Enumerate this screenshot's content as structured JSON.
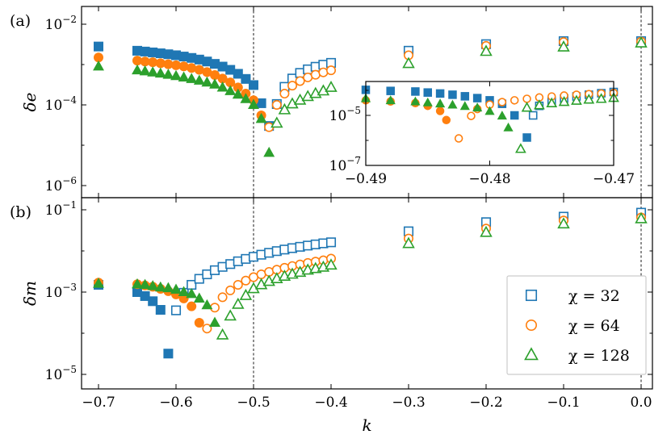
{
  "colors": {
    "chi32": "#1f77b4",
    "chi64": "#ff7f0e",
    "chi128": "#2ca02c"
  },
  "chart_data": [
    {
      "type": "scatter",
      "panel_label": "(a)",
      "ylabel": "δe",
      "xlabel": "",
      "yscale": "log",
      "xlim": [
        -0.72,
        0.01
      ],
      "ylim": [
        5e-07,
        0.012
      ],
      "x_ticks": [
        -0.7,
        -0.6,
        -0.5,
        -0.4,
        -0.3,
        -0.2,
        -0.1,
        0.0
      ],
      "y_ticks": [
        {
          "value": 1e-06,
          "label": "10",
          "exp": "−6"
        },
        {
          "value": 0.0001,
          "label": "10",
          "exp": "−4"
        },
        {
          "value": 0.01,
          "label": "10",
          "exp": "−2"
        }
      ],
      "vlines": [
        -0.5,
        0.0
      ],
      "series": [
        {
          "key": "chi32",
          "marker": "square",
          "filled": {
            "x": [
              -0.7,
              -0.65,
              -0.64,
              -0.63,
              -0.62,
              -0.61,
              -0.6,
              -0.59,
              -0.58,
              -0.57,
              -0.56,
              -0.55,
              -0.54,
              -0.53,
              -0.52,
              -0.51,
              -0.5,
              -0.49,
              -0.48
            ],
            "y": [
              0.0028,
              0.0022,
              0.0021,
              0.002,
              0.0019,
              0.0018,
              0.0017,
              0.00158,
              0.00146,
              0.00133,
              0.00119,
              0.00104,
              0.00089,
              0.00074,
              0.00059,
              0.00044,
              0.00031,
              0.00011,
              3e-05
            ]
          },
          "open": {
            "x": [
              -0.47,
              -0.46,
              -0.45,
              -0.44,
              -0.43,
              -0.42,
              -0.41,
              -0.4,
              -0.3,
              -0.2,
              -0.1,
              0.0
            ],
            "y": [
              0.000105,
              0.00028,
              0.00045,
              0.00062,
              0.00076,
              0.00088,
              0.00099,
              0.0011,
              0.0022,
              0.0032,
              0.0038,
              0.0038
            ]
          }
        },
        {
          "key": "chi64",
          "marker": "circle",
          "filled": {
            "x": [
              -0.7,
              -0.65,
              -0.64,
              -0.63,
              -0.62,
              -0.61,
              -0.6,
              -0.59,
              -0.58,
              -0.57,
              -0.56,
              -0.55,
              -0.54,
              -0.53,
              -0.52,
              -0.51,
              -0.5,
              -0.49
            ],
            "y": [
              0.0015,
              0.00125,
              0.00119,
              0.00114,
              0.00108,
              0.00102,
              0.00096,
              0.0009,
              0.00082,
              0.00074,
              0.00065,
              0.00055,
              0.00045,
              0.00036,
              0.00027,
              0.00019,
              0.00013,
              5.5e-05
            ]
          },
          "open": {
            "x": [
              -0.48,
              -0.47,
              -0.46,
              -0.45,
              -0.44,
              -0.43,
              -0.42,
              -0.41,
              -0.4,
              -0.3,
              -0.2,
              -0.1,
              0.0
            ],
            "y": [
              2.8e-05,
              0.0001,
              0.00019,
              0.0003,
              0.00039,
              0.00048,
              0.00056,
              0.00064,
              0.00072,
              0.0017,
              0.0029,
              0.0036,
              0.0037
            ]
          }
        },
        {
          "key": "chi128",
          "marker": "triangle",
          "filled": {
            "x": [
              -0.7,
              -0.65,
              -0.64,
              -0.63,
              -0.62,
              -0.61,
              -0.6,
              -0.59,
              -0.58,
              -0.57,
              -0.56,
              -0.55,
              -0.54,
              -0.53,
              -0.52,
              -0.51,
              -0.5,
              -0.49,
              -0.48
            ],
            "y": [
              0.0009,
              0.00072,
              0.00068,
              0.00064,
              0.0006,
              0.00056,
              0.00052,
              0.00048,
              0.00044,
              0.0004,
              0.00036,
              0.00032,
              0.00027,
              0.00022,
              0.00018,
              0.00014,
              0.0001,
              4.5e-05,
              6.5e-06
            ]
          },
          "open": {
            "x": [
              -0.47,
              -0.46,
              -0.45,
              -0.44,
              -0.43,
              -0.42,
              -0.41,
              -0.4,
              -0.3,
              -0.2,
              -0.1,
              0.0
            ],
            "y": [
              3.5e-05,
              7.5e-05,
              0.000105,
              0.00013,
              0.00016,
              0.00019,
              0.00022,
              0.00027,
              0.00105,
              0.0021,
              0.0027,
              0.0034
            ]
          }
        }
      ]
    },
    {
      "type": "scatter",
      "panel_label": "",
      "ylabel": "",
      "xlabel": "",
      "yscale": "log",
      "role": "inset",
      "xlim": [
        -0.49,
        -0.47
      ],
      "ylim": [
        1e-07,
        0.0002
      ],
      "x_ticks": [
        -0.49,
        -0.48,
        -0.47
      ],
      "x_tick_labels": [
        "−0.49",
        "−0.48",
        "−0.47"
      ],
      "y_ticks": [
        {
          "value": 1e-07,
          "label": "10",
          "exp": "−7"
        },
        {
          "value": 1e-05,
          "label": "10",
          "exp": "−5"
        }
      ],
      "series": [
        {
          "key": "chi32",
          "marker": "square",
          "filled": {
            "x": [
              -0.49,
              -0.488,
              -0.486,
              -0.485,
              -0.484,
              -0.483,
              -0.482,
              -0.481,
              -0.48,
              -0.479,
              -0.478,
              -0.477
            ],
            "y": [
              0.000105,
              9.5e-05,
              9e-05,
              8.2e-05,
              7.5e-05,
              6.7e-05,
              5.8e-05,
              4.9e-05,
              4e-05,
              2.9e-05,
              1e-05,
              1.3e-06
            ]
          },
          "open": {
            "x": [
              -0.4765,
              -0.476,
              -0.475,
              -0.474,
              -0.473,
              -0.472,
              -0.471,
              -0.47
            ],
            "y": [
              1e-05,
              2.4e-05,
              3.6e-05,
              4.7e-05,
              5.7e-05,
              6.7e-05,
              7.7e-05,
              8.6e-05
            ]
          }
        },
        {
          "key": "chi64",
          "marker": "circle",
          "filled": {
            "x": [
              -0.49,
              -0.488,
              -0.486,
              -0.485,
              -0.484,
              -0.4835
            ],
            "y": [
              4e-05,
              3.6e-05,
              3.1e-05,
              2.4e-05,
              1.5e-05,
              6.5e-06
            ]
          },
          "open": {
            "x": [
              -0.4825,
              -0.4815,
              -0.481,
              -0.48,
              -0.479,
              -0.478,
              -0.477,
              -0.476,
              -0.475,
              -0.474,
              -0.473,
              -0.472,
              -0.471,
              -0.47
            ],
            "y": [
              1.2e-06,
              9.5e-06,
              1.8e-05,
              2.7e-05,
              3.4e-05,
              4e-05,
              4.6e-05,
              5.2e-05,
              5.7e-05,
              6.2e-05,
              6.7e-05,
              7.1e-05,
              7.5e-05,
              7.9e-05
            ]
          }
        },
        {
          "key": "chi128",
          "marker": "triangle",
          "filled": {
            "x": [
              -0.49,
              -0.488,
              -0.486,
              -0.485,
              -0.484,
              -0.483,
              -0.482,
              -0.481,
              -0.48,
              -0.479,
              -0.4785
            ],
            "y": [
              4.7e-05,
              3.9e-05,
              3.5e-05,
              3.2e-05,
              2.9e-05,
              2.6e-05,
              2.3e-05,
              2e-05,
              1.45e-05,
              9.5e-06,
              3.2e-06
            ]
          },
          "open": {
            "x": [
              -0.4775,
              -0.477,
              -0.476,
              -0.475,
              -0.474,
              -0.473,
              -0.472,
              -0.471,
              -0.47
            ],
            "y": [
              4.5e-07,
              2e-05,
              2.5e-05,
              3e-05,
              3.4e-05,
              3.8e-05,
              4.2e-05,
              4.5e-05,
              4.9e-05
            ]
          }
        }
      ]
    },
    {
      "type": "scatter",
      "panel_label": "(b)",
      "ylabel": "δm",
      "xlabel": "k",
      "yscale": "log",
      "xlim": [
        -0.72,
        0.01
      ],
      "ylim": [
        5e-06,
        0.15
      ],
      "x_ticks": [
        -0.7,
        -0.6,
        -0.5,
        -0.4,
        -0.3,
        -0.2,
        -0.1,
        0.0
      ],
      "x_tick_labels": [
        "−0.7",
        "−0.6",
        "−0.5",
        "−0.4",
        "−0.3",
        "−0.2",
        "−0.1",
        "0.0"
      ],
      "y_ticks": [
        {
          "value": 1e-05,
          "label": "10",
          "exp": "−5"
        },
        {
          "value": 0.001,
          "label": "10",
          "exp": "−3"
        },
        {
          "value": 0.1,
          "label": "10",
          "exp": "−1"
        }
      ],
      "vlines": [
        -0.5,
        0.0
      ],
      "legend": {
        "placement": "lower-right",
        "entries": [
          {
            "key": "chi32",
            "marker": "square",
            "label": "χ = 32"
          },
          {
            "key": "chi64",
            "marker": "circle",
            "label": "χ = 64"
          },
          {
            "key": "chi128",
            "marker": "triangle",
            "label": "χ = 128"
          }
        ]
      },
      "series": [
        {
          "key": "chi32",
          "marker": "square",
          "filled": {
            "x": [
              -0.7,
              -0.65,
              -0.64,
              -0.63,
              -0.62,
              -0.61
            ],
            "y": [
              0.0015,
              0.001,
              0.0008,
              0.0006,
              0.00037,
              3.2e-05
            ]
          },
          "open": {
            "x": [
              -0.6,
              -0.59,
              -0.58,
              -0.57,
              -0.56,
              -0.55,
              -0.54,
              -0.53,
              -0.52,
              -0.51,
              -0.5,
              -0.49,
              -0.48,
              -0.47,
              -0.46,
              -0.45,
              -0.44,
              -0.43,
              -0.42,
              -0.41,
              -0.4,
              -0.3,
              -0.2,
              -0.1,
              0.0
            ],
            "y": [
              0.00036,
              0.00096,
              0.0015,
              0.0021,
              0.0027,
              0.0034,
              0.0041,
              0.0048,
              0.0056,
              0.0064,
              0.0072,
              0.0081,
              0.009,
              0.0099,
              0.0108,
              0.0117,
              0.0126,
              0.0135,
              0.0144,
              0.0153,
              0.0162,
              0.03,
              0.05,
              0.068,
              0.085
            ]
          }
        },
        {
          "key": "chi64",
          "marker": "circle",
          "filled": {
            "x": [
              -0.7,
              -0.65,
              -0.64,
              -0.63,
              -0.62,
              -0.61,
              -0.6,
              -0.59,
              -0.58,
              -0.57
            ],
            "y": [
              0.0017,
              0.00155,
              0.00145,
              0.00135,
              0.0012,
              0.00105,
              0.00088,
              0.0007,
              0.00045,
              0.00018
            ]
          },
          "open": {
            "x": [
              -0.56,
              -0.55,
              -0.54,
              -0.53,
              -0.52,
              -0.51,
              -0.5,
              -0.49,
              -0.48,
              -0.47,
              -0.46,
              -0.45,
              -0.44,
              -0.43,
              -0.42,
              -0.41,
              -0.4,
              -0.3,
              -0.2,
              -0.1,
              0.0
            ],
            "y": [
              0.00013,
              0.00042,
              0.00075,
              0.0011,
              0.0015,
              0.0019,
              0.0023,
              0.0027,
              0.0031,
              0.0035,
              0.0039,
              0.0043,
              0.0047,
              0.0051,
              0.0055,
              0.0059,
              0.0065,
              0.02,
              0.035,
              0.055,
              0.065
            ]
          }
        },
        {
          "key": "chi128",
          "marker": "triangle",
          "filled": {
            "x": [
              -0.7,
              -0.65,
              -0.64,
              -0.63,
              -0.62,
              -0.61,
              -0.6,
              -0.59,
              -0.58,
              -0.57,
              -0.56,
              -0.55
            ],
            "y": [
              0.0016,
              0.00155,
              0.0015,
              0.0014,
              0.0013,
              0.00125,
              0.00115,
              0.001,
              0.0009,
              0.0007,
              0.00048,
              0.00018
            ]
          },
          "open": {
            "x": [
              -0.54,
              -0.53,
              -0.52,
              -0.51,
              -0.5,
              -0.49,
              -0.48,
              -0.47,
              -0.46,
              -0.45,
              -0.44,
              -0.43,
              -0.42,
              -0.41,
              -0.4,
              -0.3,
              -0.2,
              -0.1,
              0.0
            ],
            "y": [
              9e-05,
              0.00026,
              0.0005,
              0.00082,
              0.0012,
              0.0015,
              0.0018,
              0.0021,
              0.0024,
              0.0027,
              0.003,
              0.0034,
              0.0037,
              0.004,
              0.0045,
              0.015,
              0.028,
              0.045,
              0.06
            ]
          }
        }
      ]
    }
  ]
}
